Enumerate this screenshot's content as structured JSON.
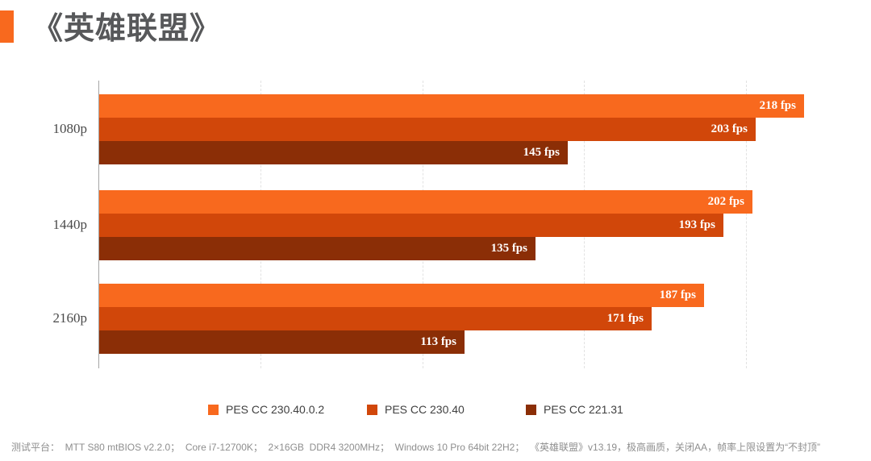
{
  "title": "《英雄联盟》",
  "accent_color": "#F8691E",
  "footer": "测试平台：  MTT S80 mtBIOS v2.2.0；  Core i7-12700K；  2×16GB  DDR4 3200MHz；  Windows 10 Pro 64bit 22H2；  《英雄联盟》v13.19，极高画质，关闭AA，帧率上限设置为“不封顶”",
  "chart_data": {
    "type": "bar",
    "orientation": "horizontal",
    "title": "《英雄联盟》",
    "categories": [
      "1080p",
      "1440p",
      "2160p"
    ],
    "series": [
      {
        "name": "PES CC 230.40.0.2",
        "color": "#F8691E",
        "values": [
          218,
          202,
          187
        ]
      },
      {
        "name": "PES CC 230.40",
        "color": "#D1470A",
        "values": [
          203,
          193,
          171
        ]
      },
      {
        "name": "PES CC 221.31",
        "color": "#8B2E06",
        "values": [
          145,
          135,
          113
        ]
      }
    ],
    "value_suffix": " fps",
    "value_labels": "inside-end, white bold serif",
    "xlim": [
      0,
      232.5
    ],
    "gridline_values": [
      50,
      100,
      150,
      200
    ],
    "grid": "dashed-vertical",
    "legend_position": "bottom",
    "axis_colors": {
      "axis_line": "#a6a6a6",
      "gridline": "#e2e2e2",
      "category_label": "#4a4a4a"
    }
  }
}
